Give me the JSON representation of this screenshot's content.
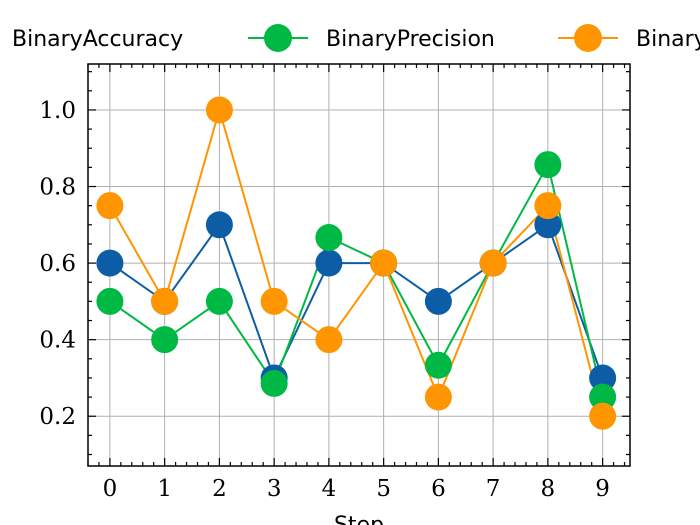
{
  "chart_data": {
    "type": "line",
    "xlabel": "Step",
    "ylabel": "",
    "x": [
      0,
      1,
      2,
      3,
      4,
      5,
      6,
      7,
      8,
      9
    ],
    "xticks": [
      "0",
      "1",
      "2",
      "3",
      "4",
      "5",
      "6",
      "7",
      "8",
      "9"
    ],
    "yticks": [
      "0.2",
      "0.4",
      "0.6",
      "0.8",
      "1.0"
    ],
    "ylim": [
      0.07,
      1.12
    ],
    "xlim": [
      -0.4,
      9.5
    ],
    "grid": true,
    "legend_position": "top, outside plot, single row",
    "series": [
      {
        "name": "BinaryAccuracy",
        "color": "#0C5DA5",
        "values": [
          0.6,
          0.5,
          0.7,
          0.3,
          0.6,
          0.6,
          0.5,
          0.6,
          0.7,
          0.3
        ]
      },
      {
        "name": "BinaryPrecision",
        "color": "#00B945",
        "values": [
          0.5,
          0.4,
          0.5,
          0.2857,
          0.6667,
          0.6,
          0.3333,
          0.6,
          0.8571,
          0.25
        ]
      },
      {
        "name": "BinaryRecall",
        "color": "#FF9500",
        "values": [
          0.75,
          0.5,
          1.0,
          0.5,
          0.4,
          0.6,
          0.25,
          0.6,
          0.75,
          0.2
        ]
      }
    ]
  }
}
